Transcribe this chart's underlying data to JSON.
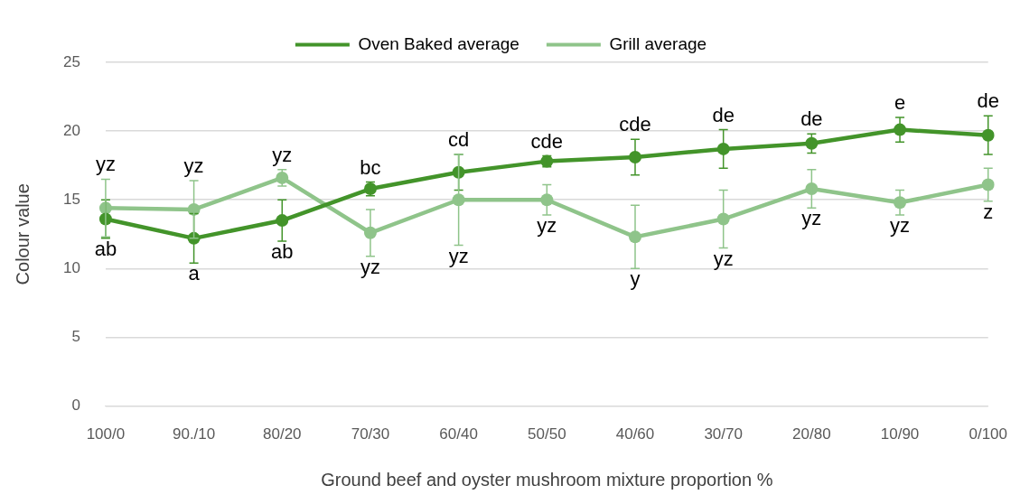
{
  "chart_data": {
    "type": "line",
    "xlabel": "Ground beef and oyster mushroom mixture proportion %",
    "ylabel": "Colour value",
    "categories": [
      "100/0",
      "90./10",
      "80/20",
      "70/30",
      "60/40",
      "50/50",
      "40/60",
      "30/70",
      "20/80",
      "10/90",
      "0/100"
    ],
    "series": [
      {
        "name": "Oven Baked average",
        "color": "#43942a",
        "values": [
          13.6,
          12.2,
          13.5,
          15.8,
          17.0,
          17.8,
          18.1,
          18.7,
          19.1,
          20.1,
          19.7
        ],
        "errors": [
          1.4,
          1.8,
          1.5,
          0.5,
          1.3,
          0.4,
          1.3,
          1.4,
          0.7,
          0.9,
          1.4
        ]
      },
      {
        "name": "Grill average",
        "color": "#8fc48a",
        "values": [
          14.4,
          14.3,
          16.6,
          12.6,
          15.0,
          15.0,
          12.3,
          13.6,
          15.8,
          14.8,
          16.1
        ],
        "errors": [
          2.1,
          2.1,
          0.6,
          1.7,
          3.3,
          1.1,
          2.3,
          2.1,
          1.4,
          0.9,
          1.2
        ]
      }
    ],
    "ylim": [
      0,
      25
    ],
    "yticks": [
      0,
      5,
      10,
      15,
      20,
      25
    ],
    "grid": "y",
    "legend": "top",
    "marker": "circle",
    "line_style": "solid",
    "annotations": [
      {
        "text": "ab",
        "x": "100/0",
        "y": 13.6
      },
      {
        "text": "a",
        "x": "90./10",
        "y": 12.2
      },
      {
        "text": "ab",
        "x": "80/20",
        "y": 13.5
      },
      {
        "text": "bc",
        "x": "70/30",
        "y": 15.8
      },
      {
        "text": "cd",
        "x": "60/40",
        "y": 17.0
      },
      {
        "text": "cde",
        "x": "50/50",
        "y": 17.8
      },
      {
        "text": "cde",
        "x": "40/60",
        "y": 18.1
      },
      {
        "text": "de",
        "x": "30/70",
        "y": 18.7
      },
      {
        "text": "de",
        "x": "20/80",
        "y": 19.1
      },
      {
        "text": "e",
        "x": "10/90",
        "y": 20.1
      },
      {
        "text": "de",
        "x": "0/100",
        "y": 19.7
      },
      {
        "text": "yz",
        "x": "100/0",
        "y": 14.4
      },
      {
        "text": "yz",
        "x": "90./10",
        "y": 14.3
      },
      {
        "text": "yz",
        "x": "80/20",
        "y": 16.6
      },
      {
        "text": "yz",
        "x": "70/30",
        "y": 12.6
      },
      {
        "text": "yz",
        "x": "60/40",
        "y": 15.0
      },
      {
        "text": "yz",
        "x": "50/50",
        "y": 15.0
      },
      {
        "text": "y",
        "x": "40/60",
        "y": 12.3
      },
      {
        "text": "yz",
        "x": "30/70",
        "y": 13.6
      },
      {
        "text": "yz",
        "x": "20/80",
        "y": 15.8
      },
      {
        "text": "yz",
        "x": "10/90",
        "y": 14.8
      },
      {
        "text": "z",
        "x": "0/100",
        "y": 16.1
      }
    ]
  }
}
